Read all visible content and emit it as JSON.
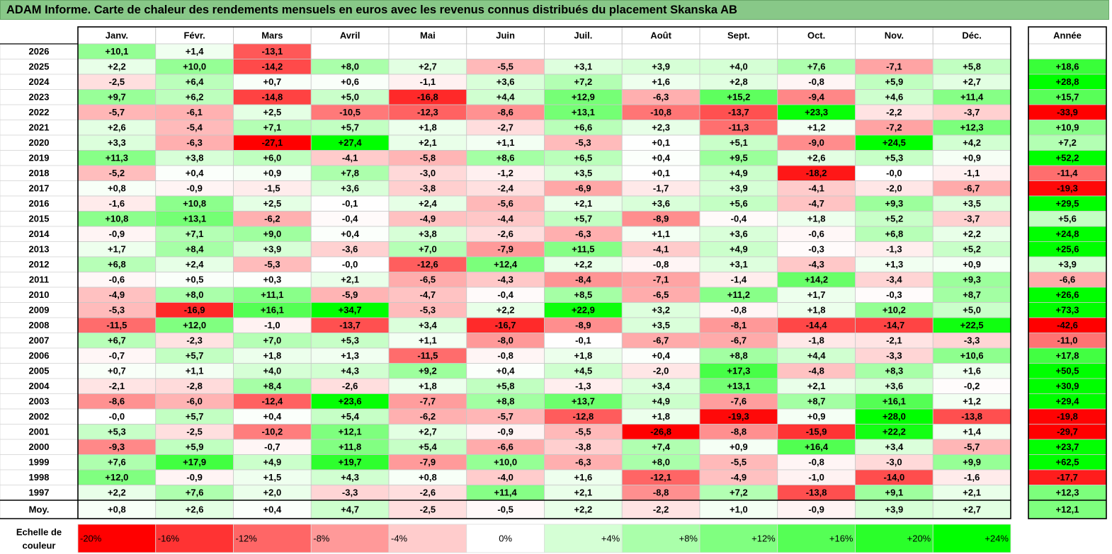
{
  "title": "ADAM Informe. Carte de chaleur des rendements mensuels en euros avec les revenus connus distribués du placement Skanska AB",
  "chart_data": {
    "type": "heatmap",
    "columns": [
      "Janv.",
      "Févr.",
      "Mars",
      "Avril",
      "Mai",
      "Juin",
      "Juil.",
      "Août",
      "Sept.",
      "Oct.",
      "Nov.",
      "Déc."
    ],
    "annual_header": "Année",
    "rows": [
      {
        "year": "2026",
        "values": [
          "+10,1",
          "+1,4",
          "-13,1",
          null,
          null,
          null,
          null,
          null,
          null,
          null,
          null,
          null
        ],
        "annual": null
      },
      {
        "year": "2025",
        "values": [
          "+2,2",
          "+10,0",
          "-14,2",
          "+8,0",
          "+2,7",
          "-5,5",
          "+3,1",
          "+3,9",
          "+4,0",
          "+7,6",
          "-7,1",
          "+5,8"
        ],
        "annual": "+18,6"
      },
      {
        "year": "2024",
        "values": [
          "-2,5",
          "+6,4",
          "+0,7",
          "+0,6",
          "-1,1",
          "+3,6",
          "+7,2",
          "+1,6",
          "+2,8",
          "-0,8",
          "+5,9",
          "+2,7"
        ],
        "annual": "+28,8"
      },
      {
        "year": "2023",
        "values": [
          "+9,7",
          "+6,2",
          "-14,8",
          "+5,0",
          "-16,8",
          "+4,4",
          "+12,9",
          "-6,3",
          "+15,2",
          "-9,4",
          "+4,6",
          "+11,4"
        ],
        "annual": "+15,7"
      },
      {
        "year": "2022",
        "values": [
          "-5,7",
          "-6,1",
          "+2,5",
          "-10,5",
          "-12,3",
          "-8,6",
          "+13,1",
          "-10,8",
          "-13,7",
          "+23,3",
          "-2,2",
          "-3,7"
        ],
        "annual": "-33,9"
      },
      {
        "year": "2021",
        "values": [
          "+2,6",
          "-5,4",
          "+7,1",
          "+5,7",
          "+1,8",
          "-2,7",
          "+6,6",
          "+2,3",
          "-11,3",
          "+1,2",
          "-7,2",
          "+12,3"
        ],
        "annual": "+10,9"
      },
      {
        "year": "2020",
        "values": [
          "+3,3",
          "-6,3",
          "-27,1",
          "+27,4",
          "+2,1",
          "+1,1",
          "-5,3",
          "+0,1",
          "+5,1",
          "-9,0",
          "+24,5",
          "+4,2"
        ],
        "annual": "+7,2"
      },
      {
        "year": "2019",
        "values": [
          "+11,3",
          "+3,8",
          "+6,0",
          "-4,1",
          "-5,8",
          "+8,6",
          "+6,5",
          "+0,4",
          "+9,5",
          "+2,6",
          "+5,3",
          "+0,9"
        ],
        "annual": "+52,2"
      },
      {
        "year": "2018",
        "values": [
          "-5,2",
          "+0,4",
          "+0,9",
          "+7,8",
          "-3,0",
          "-1,2",
          "+3,5",
          "+0,1",
          "+4,9",
          "-18,2",
          "-0,0",
          "-1,1"
        ],
        "annual": "-11,4"
      },
      {
        "year": "2017",
        "values": [
          "+0,8",
          "-0,9",
          "-1,5",
          "+3,6",
          "-3,8",
          "-2,4",
          "-6,9",
          "-1,7",
          "+3,9",
          "-4,1",
          "-2,0",
          "-6,7"
        ],
        "annual": "-19,3"
      },
      {
        "year": "2016",
        "values": [
          "-1,6",
          "+10,8",
          "+2,5",
          "-0,1",
          "+2,4",
          "-5,6",
          "+2,1",
          "+3,6",
          "+5,6",
          "-4,7",
          "+9,3",
          "+3,5"
        ],
        "annual": "+29,5"
      },
      {
        "year": "2015",
        "values": [
          "+10,8",
          "+13,1",
          "-6,2",
          "-0,4",
          "-4,9",
          "-4,4",
          "+5,7",
          "-8,9",
          "-0,4",
          "+1,8",
          "+5,2",
          "-3,7"
        ],
        "annual": "+5,6"
      },
      {
        "year": "2014",
        "values": [
          "-0,9",
          "+7,1",
          "+9,0",
          "+0,4",
          "+3,8",
          "-2,6",
          "-6,3",
          "+1,1",
          "+3,6",
          "-0,6",
          "+6,8",
          "+2,2"
        ],
        "annual": "+24,8"
      },
      {
        "year": "2013",
        "values": [
          "+1,7",
          "+8,4",
          "+3,9",
          "-3,6",
          "+7,0",
          "-7,9",
          "+11,5",
          "-4,1",
          "+4,9",
          "-0,3",
          "-1,3",
          "+5,2"
        ],
        "annual": "+25,6"
      },
      {
        "year": "2012",
        "values": [
          "+6,8",
          "+2,4",
          "-5,3",
          "-0,0",
          "-12,6",
          "+12,4",
          "+2,2",
          "-0,8",
          "+3,1",
          "-4,3",
          "+1,3",
          "+0,9"
        ],
        "annual": "+3,9"
      },
      {
        "year": "2011",
        "values": [
          "-0,6",
          "+0,5",
          "+0,3",
          "+2,1",
          "-6,5",
          "-4,3",
          "-8,4",
          "-7,1",
          "-1,4",
          "+14,2",
          "-3,4",
          "+9,3"
        ],
        "annual": "-6,6"
      },
      {
        "year": "2010",
        "values": [
          "-4,9",
          "+8,0",
          "+11,1",
          "-5,9",
          "-4,7",
          "-0,4",
          "+8,5",
          "-6,5",
          "+11,2",
          "+1,7",
          "-0,3",
          "+8,7"
        ],
        "annual": "+26,6"
      },
      {
        "year": "2009",
        "values": [
          "-5,3",
          "-16,9",
          "+16,1",
          "+34,7",
          "-5,3",
          "+2,2",
          "+22,9",
          "+3,2",
          "-0,8",
          "+1,8",
          "+10,2",
          "+5,0"
        ],
        "annual": "+73,3"
      },
      {
        "year": "2008",
        "values": [
          "-11,5",
          "+12,0",
          "-1,0",
          "-13,7",
          "+3,4",
          "-16,7",
          "-8,9",
          "+3,5",
          "-8,1",
          "-14,4",
          "-14,7",
          "+22,5"
        ],
        "annual": "-42,6"
      },
      {
        "year": "2007",
        "values": [
          "+6,7",
          "-2,3",
          "+7,0",
          "+5,3",
          "+1,1",
          "-8,0",
          "-0,1",
          "-6,7",
          "-6,7",
          "-1,8",
          "-2,1",
          "-3,3"
        ],
        "annual": "-11,0"
      },
      {
        "year": "2006",
        "values": [
          "-0,7",
          "+5,7",
          "+1,8",
          "+1,3",
          "-11,5",
          "-0,8",
          "+1,8",
          "+0,4",
          "+8,8",
          "+4,4",
          "-3,3",
          "+10,6"
        ],
        "annual": "+17,8"
      },
      {
        "year": "2005",
        "values": [
          "+0,7",
          "+1,1",
          "+4,0",
          "+4,3",
          "+9,2",
          "+0,4",
          "+4,5",
          "-2,0",
          "+17,3",
          "-4,8",
          "+8,3",
          "+1,6"
        ],
        "annual": "+50,5"
      },
      {
        "year": "2004",
        "values": [
          "-2,1",
          "-2,8",
          "+8,4",
          "-2,6",
          "+1,8",
          "+5,8",
          "-1,3",
          "+3,4",
          "+13,1",
          "+2,1",
          "+3,6",
          "-0,2"
        ],
        "annual": "+30,9"
      },
      {
        "year": "2003",
        "values": [
          "-8,6",
          "-6,0",
          "-12,4",
          "+23,6",
          "-7,7",
          "+8,8",
          "+13,7",
          "+4,9",
          "-7,6",
          "+8,7",
          "+16,1",
          "+1,2"
        ],
        "annual": "+29,4"
      },
      {
        "year": "2002",
        "values": [
          "-0,0",
          "+5,7",
          "+0,4",
          "+5,4",
          "-6,2",
          "-5,7",
          "-12,8",
          "+1,8",
          "-19,3",
          "+0,9",
          "+28,0",
          "-13,8"
        ],
        "annual": "-19,8"
      },
      {
        "year": "2001",
        "values": [
          "+5,3",
          "-2,5",
          "-10,2",
          "+12,1",
          "+2,7",
          "-0,9",
          "-5,5",
          "-26,8",
          "-8,8",
          "-15,9",
          "+22,2",
          "+1,4"
        ],
        "annual": "-29,7"
      },
      {
        "year": "2000",
        "values": [
          "-9,3",
          "+5,9",
          "-0,7",
          "+11,8",
          "+5,4",
          "-6,6",
          "-3,8",
          "+7,4",
          "+0,9",
          "+16,4",
          "+3,4",
          "-5,7"
        ],
        "annual": "+23,7"
      },
      {
        "year": "1999",
        "values": [
          "+7,6",
          "+17,9",
          "+4,9",
          "+19,7",
          "-7,9",
          "+10,0",
          "-6,3",
          "+8,0",
          "-5,5",
          "-0,8",
          "-3,0",
          "+9,9"
        ],
        "annual": "+62,5"
      },
      {
        "year": "1998",
        "values": [
          "+12,0",
          "-0,9",
          "+1,5",
          "+4,3",
          "+0,8",
          "-4,0",
          "+1,6",
          "-12,1",
          "-4,9",
          "-1,0",
          "-14,0",
          "-1,6"
        ],
        "annual": "-17,7"
      },
      {
        "year": "1997",
        "values": [
          "+2,2",
          "+7,6",
          "+2,0",
          "-3,3",
          "-2,6",
          "+11,4",
          "+2,1",
          "-8,8",
          "+7,2",
          "-13,8",
          "+9,1",
          "+2,1"
        ],
        "annual": "+12,3"
      }
    ],
    "average": {
      "label": "Moy.",
      "values": [
        "+0,8",
        "+2,6",
        "+0,4",
        "+4,7",
        "-2,5",
        "-0,5",
        "+2,2",
        "-2,2",
        "+1,0",
        "-0,9",
        "+3,9",
        "+2,7"
      ],
      "annual": "+12,1"
    },
    "scale": {
      "label": [
        "Echelle de",
        "couleur"
      ],
      "steps": [
        {
          "label": "-20%",
          "value": -20
        },
        {
          "label": "-16%",
          "value": -16
        },
        {
          "label": "-12%",
          "value": -12
        },
        {
          "label": "-8%",
          "value": -8
        },
        {
          "label": "-4%",
          "value": -4
        },
        {
          "label": "0%",
          "value": 0
        },
        {
          "label": "+4%",
          "value": 4
        },
        {
          "label": "+8%",
          "value": 8
        },
        {
          "label": "+12%",
          "value": 12
        },
        {
          "label": "+16%",
          "value": 16
        },
        {
          "label": "+20%",
          "value": 20
        },
        {
          "label": "+24%",
          "value": 24
        }
      ]
    },
    "colors": {
      "negative": "#ff0000",
      "neutral": "#ffffff",
      "positive": "#00ff00",
      "title_bar": "#88c888"
    }
  }
}
